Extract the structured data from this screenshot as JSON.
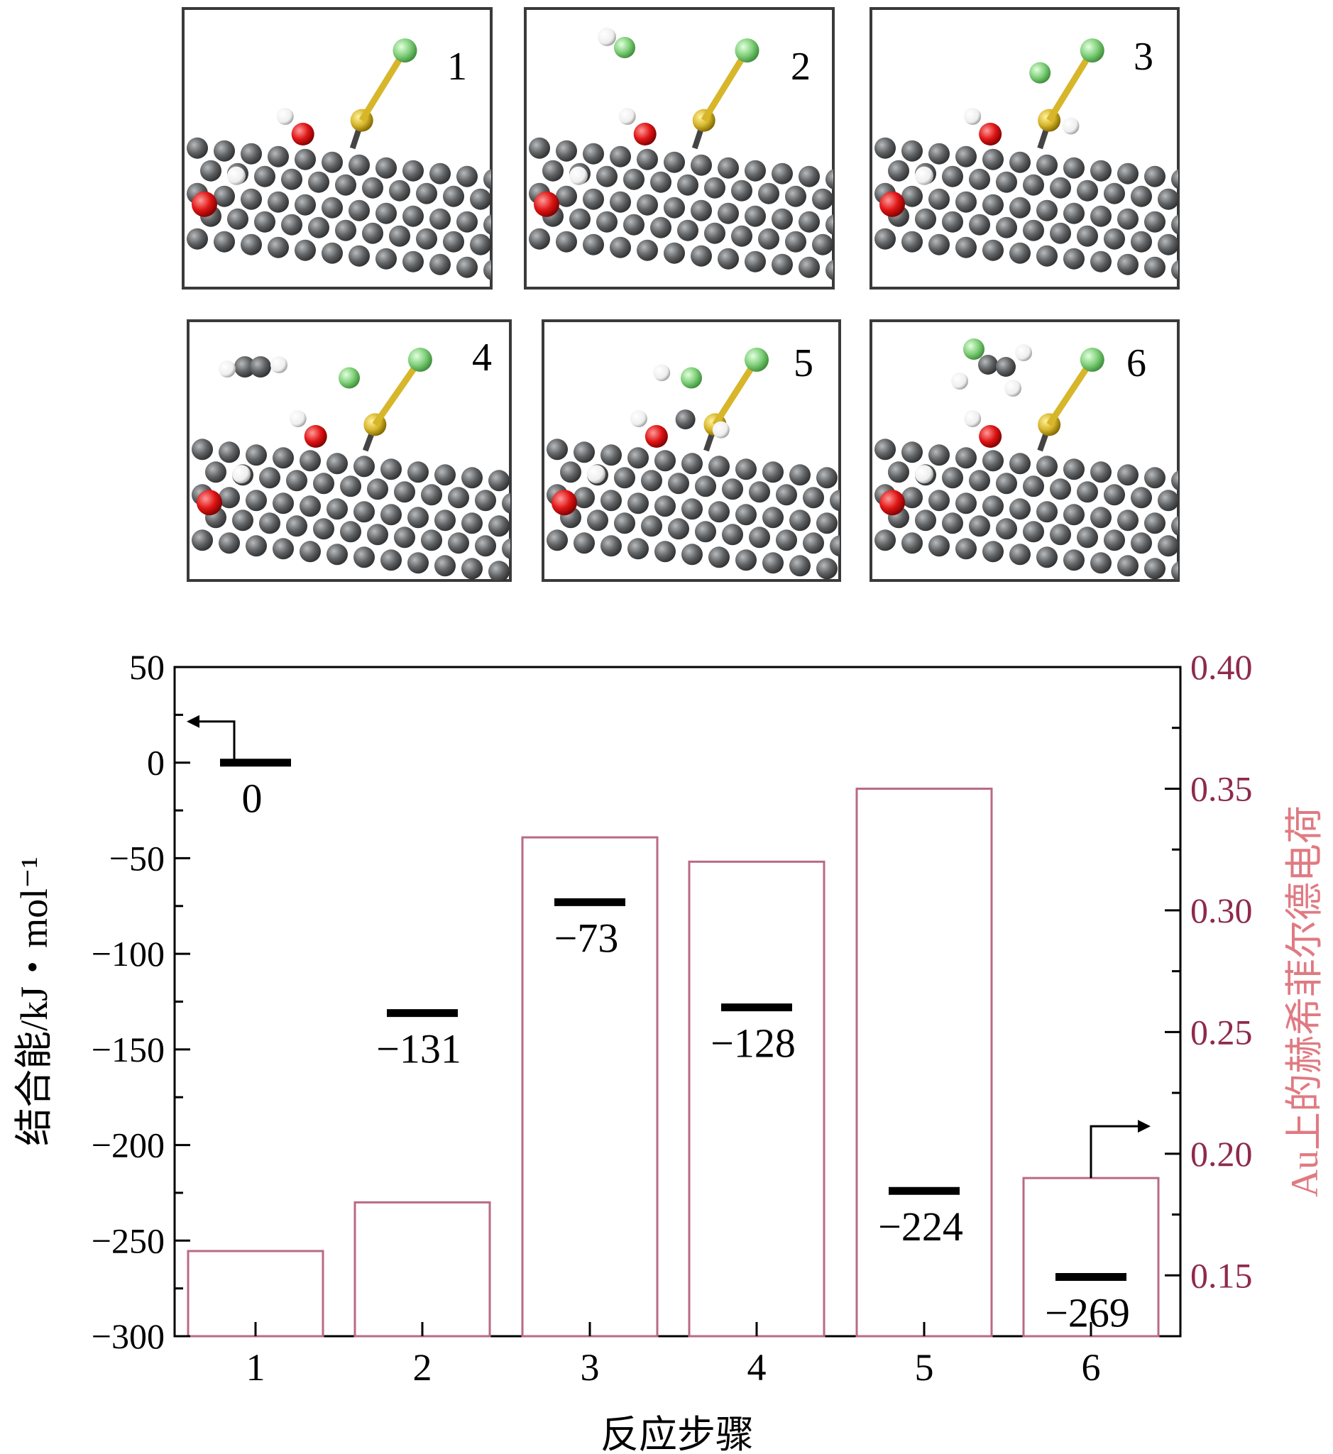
{
  "panels": [
    {
      "number": "1"
    },
    {
      "number": "2"
    },
    {
      "number": "3"
    },
    {
      "number": "4"
    },
    {
      "number": "5"
    },
    {
      "number": "6"
    }
  ],
  "colors": {
    "carbon": "#5f6163",
    "oxygen": "#e01515",
    "hydrogen": "#ffffff",
    "gold": "#d7b62a",
    "chlorine": "#7fd07a",
    "bar_outline": "#b96a86",
    "right_axis": "#8e2a4d",
    "right_title": "#e07a82"
  },
  "chart_data": {
    "type": "bar",
    "categories": [
      "1",
      "2",
      "3",
      "4",
      "5",
      "6"
    ],
    "xlabel": "反应步骤",
    "ylabel": "结合能/kJ・mol⁻¹",
    "y2label": "Au上的赫希菲尔德电荷",
    "ylim": [
      -300,
      50
    ],
    "y2lim": [
      0.125,
      0.4
    ],
    "yticks": [
      "50",
      "0",
      "−50",
      "−100",
      "−150",
      "−200",
      "−250",
      "−300"
    ],
    "y2ticks": [
      "0.40",
      "0.35",
      "0.30",
      "0.25",
      "0.20",
      "0.15"
    ],
    "series": [
      {
        "axis": "left",
        "style": "level-markers",
        "values": [
          0,
          -131,
          -73,
          -128,
          -224,
          -269
        ],
        "labels": [
          "0",
          "−131",
          "−73",
          "−128",
          "−224",
          "−269"
        ]
      },
      {
        "axis": "right",
        "style": "outlined-bars",
        "values": [
          0.16,
          0.18,
          0.33,
          0.32,
          0.35,
          0.19
        ]
      }
    ],
    "arrows": [
      {
        "series": 0,
        "direction": "left"
      },
      {
        "series": 1,
        "direction": "right"
      }
    ]
  }
}
